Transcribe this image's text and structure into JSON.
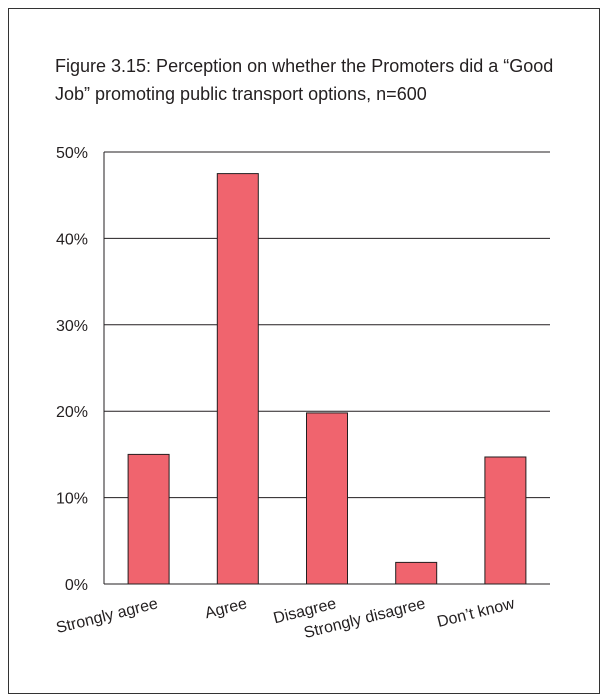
{
  "chart_data": {
    "type": "bar",
    "title": "Figure 3.15: Perception on whether the Promoters did a “Good Job” promoting public transport options, n=600",
    "xlabel": "",
    "ylabel": "",
    "categories": [
      "Strongly agree",
      "Agree",
      "Disagree",
      "Strongly disagree",
      "Don’t know"
    ],
    "values": [
      15.0,
      47.5,
      19.8,
      2.5,
      14.7
    ],
    "ylim": [
      0,
      50
    ],
    "yticks": [
      0,
      10,
      20,
      30,
      40,
      50
    ],
    "ytick_labels": [
      "0%",
      "10%",
      "20%",
      "30%",
      "40%",
      "50%"
    ],
    "grid": true,
    "legend": "none",
    "bar_color": "#f0646e",
    "bar_edge_color": "#231f20"
  }
}
